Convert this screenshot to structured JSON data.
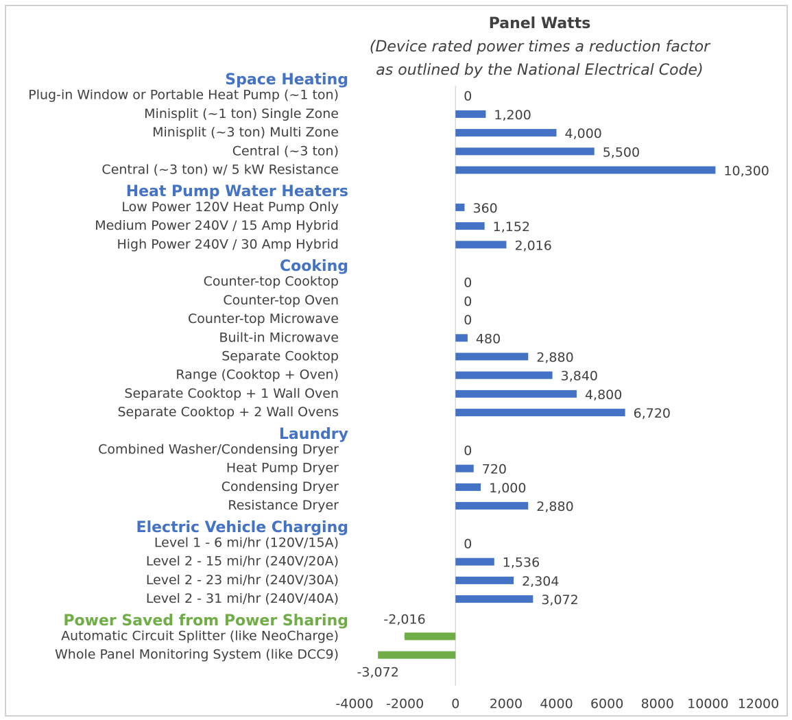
{
  "chart_data": {
    "type": "bar",
    "orientation": "horizontal",
    "title": "Panel Watts",
    "subtitle": [
      "(Device rated power times a reduction factor",
      "as outlined by the National Electrical Code)"
    ],
    "xlim": [
      -4000,
      12000
    ],
    "xticks": [
      -4000,
      -2000,
      0,
      2000,
      4000,
      6000,
      8000,
      10000,
      12000
    ],
    "grid": false,
    "groups": [
      {
        "name": "Space Heating",
        "color": "#4472c4",
        "categories": [
          "Plug-in Window or Portable Heat Pump (~1 ton)",
          "Minisplit (~1 ton) Single Zone",
          "Minisplit (~3 ton) Multi Zone",
          "Central (~3 ton)",
          "Central (~3 ton) w/ 5 kW Resistance"
        ],
        "values": [
          0,
          1200,
          4000,
          5500,
          10300
        ],
        "value_labels": [
          "0",
          "1,200",
          "4,000",
          "5,500",
          "10,300"
        ]
      },
      {
        "name": "Heat Pump Water Heaters",
        "color": "#4472c4",
        "categories": [
          "Low Power 120V Heat Pump Only",
          "Medium Power 240V / 15 Amp Hybrid",
          "High Power 240V / 30 Amp Hybrid"
        ],
        "values": [
          360,
          1152,
          2016
        ],
        "value_labels": [
          "360",
          "1,152",
          "2,016"
        ]
      },
      {
        "name": "Cooking",
        "color": "#4472c4",
        "categories": [
          "Counter-top Cooktop",
          "Counter-top Oven",
          "Counter-top Microwave",
          "Built-in Microwave",
          "Separate Cooktop",
          "Range (Cooktop + Oven)",
          "Separate Cooktop + 1 Wall Oven",
          "Separate Cooktop + 2 Wall Ovens"
        ],
        "values": [
          0,
          0,
          0,
          480,
          2880,
          3840,
          4800,
          6720
        ],
        "value_labels": [
          "0",
          "0",
          "0",
          "480",
          "2,880",
          "3,840",
          "4,800",
          "6,720"
        ]
      },
      {
        "name": "Laundry",
        "color": "#4472c4",
        "categories": [
          "Combined Washer/Condensing Dryer",
          "Heat Pump Dryer",
          "Condensing Dryer",
          "Resistance Dryer"
        ],
        "values": [
          0,
          720,
          1000,
          2880
        ],
        "value_labels": [
          "0",
          "720",
          "1,000",
          "2,880"
        ]
      },
      {
        "name": "Electric Vehicle Charging",
        "color": "#4472c4",
        "categories": [
          "Level 1 - 6 mi/hr (120V/15A)",
          "Level 2 - 15 mi/hr (240V/20A)",
          "Level 2 - 23 mi/hr (240V/30A)",
          "Level 2 - 31 mi/hr (240V/40A)"
        ],
        "values": [
          0,
          1536,
          2304,
          3072
        ],
        "value_labels": [
          "0",
          "1,536",
          "2,304",
          "3,072"
        ]
      },
      {
        "name": "Power Saved from Power Sharing",
        "color": "#70ad47",
        "categories": [
          "Automatic Circuit Splitter (like NeoCharge)",
          "Whole Panel Monitoring System (like DCC9)"
        ],
        "values": [
          -2016,
          -3072
        ],
        "value_labels": [
          "-2,016",
          "-3,072"
        ]
      }
    ]
  }
}
